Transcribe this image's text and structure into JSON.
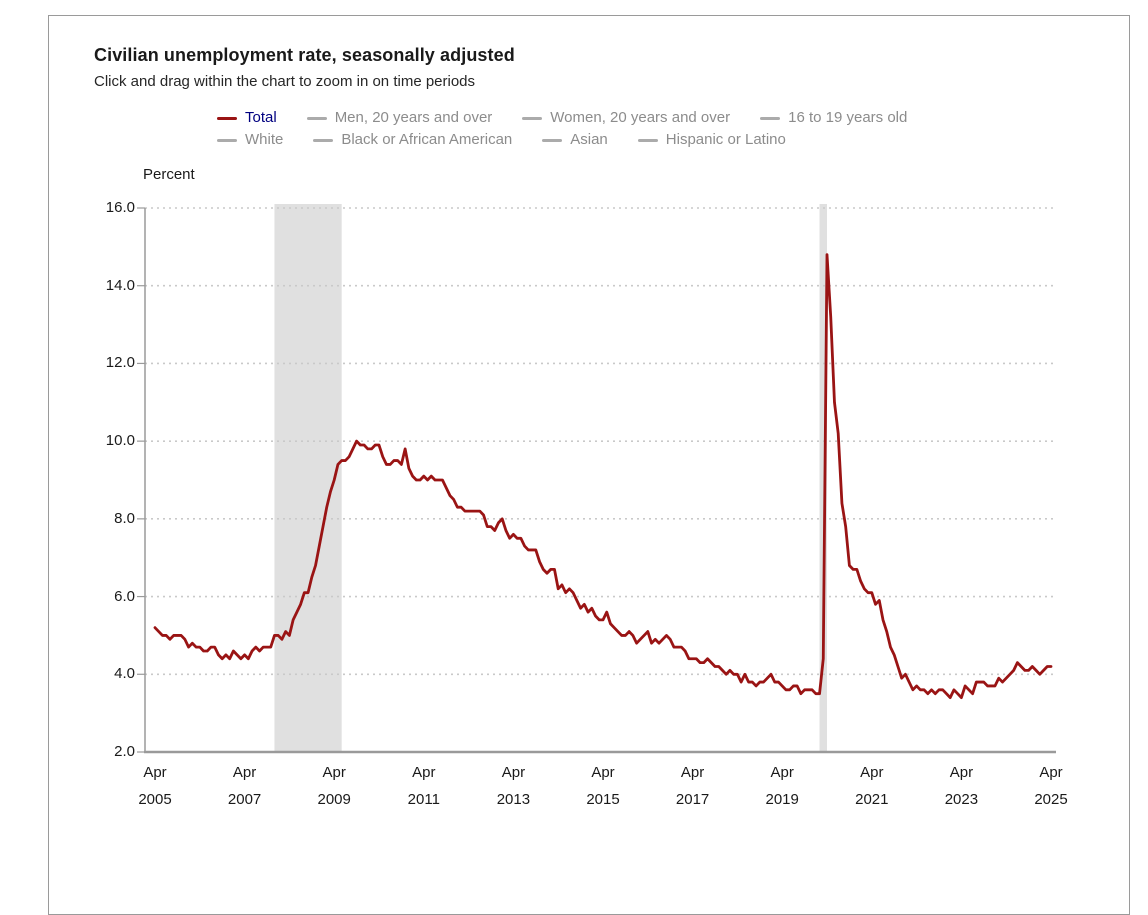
{
  "header": {
    "title": "Civilian unemployment rate, seasonally adjusted",
    "subtitle": "Click and drag within the chart to zoom in on time periods"
  },
  "legend": {
    "rows": [
      [
        {
          "label": "Total",
          "marker_color": "#9a1414",
          "text_color": "#000080",
          "active": true
        },
        {
          "label": "Men, 20 years and over",
          "marker_color": "#ababab",
          "text_color": "#8c8c8c",
          "active": false
        },
        {
          "label": "Women, 20 years and over",
          "marker_color": "#ababab",
          "text_color": "#8c8c8c",
          "active": false
        },
        {
          "label": "16 to 19 years old",
          "marker_color": "#ababab",
          "text_color": "#8c8c8c",
          "active": false
        }
      ],
      [
        {
          "label": "White",
          "marker_color": "#ababab",
          "text_color": "#8c8c8c",
          "active": false
        },
        {
          "label": "Black or African American",
          "marker_color": "#ababab",
          "text_color": "#8c8c8c",
          "active": false
        },
        {
          "label": "Asian",
          "marker_color": "#ababab",
          "text_color": "#8c8c8c",
          "active": false
        },
        {
          "label": "Hispanic or Latino",
          "marker_color": "#ababab",
          "text_color": "#8c8c8c",
          "active": false
        }
      ]
    ]
  },
  "chart_data": {
    "type": "line",
    "title": "Civilian unemployment rate, seasonally adjusted",
    "ylabel": "Percent",
    "ylim": [
      2.0,
      16.0
    ],
    "grid": "dotted horizontal gridlines at each y tick",
    "colors": {
      "line": "#9a1414",
      "recession_band": "#e0e0e0",
      "gridline": "#c9c9c9",
      "axis": "#9a9a9a"
    },
    "y_ticks": [
      {
        "label": "16.0",
        "value": 16
      },
      {
        "label": "14.0",
        "value": 14
      },
      {
        "label": "12.0",
        "value": 12
      },
      {
        "label": "10.0",
        "value": 10
      },
      {
        "label": "8.0",
        "value": 8
      },
      {
        "label": "6.0",
        "value": 6
      },
      {
        "label": "4.0",
        "value": 4
      },
      {
        "label": "2.0",
        "value": 2
      }
    ],
    "x_ticks": [
      {
        "month": "Apr",
        "year": "2005",
        "index": 0
      },
      {
        "month": "Apr",
        "year": "2007",
        "index": 24
      },
      {
        "month": "Apr",
        "year": "2009",
        "index": 48
      },
      {
        "month": "Apr",
        "year": "2011",
        "index": 72
      },
      {
        "month": "Apr",
        "year": "2013",
        "index": 96
      },
      {
        "month": "Apr",
        "year": "2015",
        "index": 120
      },
      {
        "month": "Apr",
        "year": "2017",
        "index": 144
      },
      {
        "month": "Apr",
        "year": "2019",
        "index": 168
      },
      {
        "month": "Apr",
        "year": "2021",
        "index": 192
      },
      {
        "month": "Apr",
        "year": "2023",
        "index": 216
      },
      {
        "month": "Apr",
        "year": "2025",
        "index": 240
      }
    ],
    "x_unit": "month",
    "x_range": [
      "Apr 2005",
      "Apr 2025"
    ],
    "recession_bands": [
      {
        "start_index": 32,
        "end_index": 50
      },
      {
        "start_index": 178,
        "end_index": 180
      }
    ],
    "series": [
      {
        "name": "Total",
        "color": "#9a1414",
        "values": [
          5.2,
          5.1,
          5.0,
          5.0,
          4.9,
          5.0,
          5.0,
          5.0,
          4.9,
          4.7,
          4.8,
          4.7,
          4.7,
          4.6,
          4.6,
          4.7,
          4.7,
          4.5,
          4.4,
          4.5,
          4.4,
          4.6,
          4.5,
          4.4,
          4.5,
          4.4,
          4.6,
          4.7,
          4.6,
          4.7,
          4.7,
          4.7,
          5.0,
          5.0,
          4.9,
          5.1,
          5.0,
          5.4,
          5.6,
          5.8,
          6.1,
          6.1,
          6.5,
          6.8,
          7.3,
          7.8,
          8.3,
          8.7,
          9.0,
          9.4,
          9.5,
          9.5,
          9.6,
          9.8,
          10.0,
          9.9,
          9.9,
          9.8,
          9.8,
          9.9,
          9.9,
          9.6,
          9.4,
          9.4,
          9.5,
          9.5,
          9.4,
          9.8,
          9.3,
          9.1,
          9.0,
          9.0,
          9.1,
          9.0,
          9.1,
          9.0,
          9.0,
          9.0,
          8.8,
          8.6,
          8.5,
          8.3,
          8.3,
          8.2,
          8.2,
          8.2,
          8.2,
          8.2,
          8.1,
          7.8,
          7.8,
          7.7,
          7.9,
          8.0,
          7.7,
          7.5,
          7.6,
          7.5,
          7.5,
          7.3,
          7.2,
          7.2,
          7.2,
          6.9,
          6.7,
          6.6,
          6.7,
          6.7,
          6.2,
          6.3,
          6.1,
          6.2,
          6.1,
          5.9,
          5.7,
          5.8,
          5.6,
          5.7,
          5.5,
          5.4,
          5.4,
          5.6,
          5.3,
          5.2,
          5.1,
          5.0,
          5.0,
          5.1,
          5.0,
          4.8,
          4.9,
          5.0,
          5.1,
          4.8,
          4.9,
          4.8,
          4.9,
          5.0,
          4.9,
          4.7,
          4.7,
          4.7,
          4.6,
          4.4,
          4.4,
          4.4,
          4.3,
          4.3,
          4.4,
          4.3,
          4.2,
          4.2,
          4.1,
          4.0,
          4.1,
          4.0,
          4.0,
          3.8,
          4.0,
          3.8,
          3.8,
          3.7,
          3.8,
          3.8,
          3.9,
          4.0,
          3.8,
          3.8,
          3.7,
          3.6,
          3.6,
          3.7,
          3.7,
          3.5,
          3.6,
          3.6,
          3.6,
          3.5,
          3.5,
          4.4,
          14.8,
          13.2,
          11.0,
          10.2,
          8.4,
          7.8,
          6.8,
          6.7,
          6.7,
          6.4,
          6.2,
          6.1,
          6.1,
          5.8,
          5.9,
          5.4,
          5.1,
          4.7,
          4.5,
          4.2,
          3.9,
          4.0,
          3.8,
          3.6,
          3.7,
          3.6,
          3.6,
          3.5,
          3.6,
          3.5,
          3.6,
          3.6,
          3.5,
          3.4,
          3.6,
          3.5,
          3.4,
          3.7,
          3.6,
          3.5,
          3.8,
          3.8,
          3.8,
          3.7,
          3.7,
          3.7,
          3.9,
          3.8,
          3.9,
          4.0,
          4.1,
          4.3,
          4.2,
          4.1,
          4.1,
          4.2,
          4.1,
          4.0,
          4.1,
          4.2,
          4.2
        ]
      }
    ]
  }
}
